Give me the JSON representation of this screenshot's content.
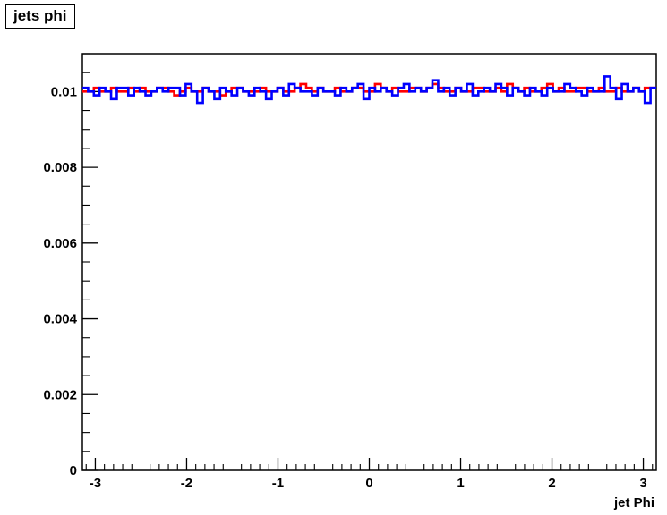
{
  "chart_data": {
    "type": "line",
    "title": "jets phi",
    "xlabel": "jet Phi",
    "ylabel": "",
    "xlim": [
      -3.1416,
      3.1416
    ],
    "ylim": [
      0,
      0.011
    ],
    "x_ticks": [
      -3,
      -2,
      -1,
      0,
      1,
      2,
      3
    ],
    "x_tick_labels": [
      "-3",
      "-2",
      "-1",
      "0",
      "1",
      "2",
      "3"
    ],
    "y_ticks": [
      0,
      0.002,
      0.004,
      0.006,
      0.008,
      0.01
    ],
    "y_tick_labels": [
      "0",
      "0.002",
      "0.004",
      "0.006",
      "0.008",
      "0.01"
    ],
    "grid": false,
    "legend": "none",
    "bins": 100,
    "series": [
      {
        "color": "#ff0000",
        "values": [
          0.01,
          0.01,
          0.0101,
          0.01,
          0.01,
          0.0101,
          0.01,
          0.01,
          0.0101,
          0.01,
          0.0101,
          0.01,
          0.01,
          0.0101,
          0.0101,
          0.01,
          0.0099,
          0.01,
          0.0101,
          0.01,
          0.01,
          0.0101,
          0.01,
          0.01,
          0.0099,
          0.01,
          0.0101,
          0.0101,
          0.01,
          0.01,
          0.01,
          0.0101,
          0.01,
          0.01,
          0.0101,
          0.01,
          0.01,
          0.0101,
          0.0102,
          0.0101,
          0.01,
          0.0101,
          0.01,
          0.01,
          0.0101,
          0.01,
          0.01,
          0.0101,
          0.0101,
          0.01,
          0.01,
          0.0102,
          0.0101,
          0.01,
          0.0101,
          0.01,
          0.01,
          0.0101,
          0.0101,
          0.01,
          0.0101,
          0.0102,
          0.0101,
          0.01,
          0.01,
          0.0101,
          0.01,
          0.01,
          0.0101,
          0.0101,
          0.01,
          0.01,
          0.0101,
          0.01,
          0.0102,
          0.0101,
          0.01,
          0.0101,
          0.01,
          0.01,
          0.0101,
          0.0102,
          0.01,
          0.0101,
          0.01,
          0.01,
          0.0101,
          0.0101,
          0.01,
          0.01,
          0.0101,
          0.01,
          0.01,
          0.0101,
          0.01,
          0.01,
          0.0101,
          0.01,
          0.0101,
          0.0101
        ]
      },
      {
        "color": "#0000ff",
        "values": [
          0.0101,
          0.01,
          0.0099,
          0.0101,
          0.01,
          0.0098,
          0.0101,
          0.0101,
          0.0099,
          0.0101,
          0.01,
          0.0099,
          0.01,
          0.0101,
          0.01,
          0.0101,
          0.0101,
          0.0099,
          0.0102,
          0.01,
          0.0097,
          0.0101,
          0.01,
          0.0098,
          0.0101,
          0.01,
          0.0099,
          0.0101,
          0.01,
          0.0099,
          0.0101,
          0.01,
          0.0098,
          0.01,
          0.0101,
          0.0099,
          0.0102,
          0.0101,
          0.01,
          0.01,
          0.0099,
          0.0101,
          0.01,
          0.01,
          0.0099,
          0.0101,
          0.01,
          0.0101,
          0.0102,
          0.0098,
          0.0101,
          0.01,
          0.0101,
          0.01,
          0.0099,
          0.0101,
          0.0102,
          0.01,
          0.0101,
          0.01,
          0.0101,
          0.0103,
          0.01,
          0.0101,
          0.0099,
          0.0101,
          0.01,
          0.0102,
          0.0099,
          0.01,
          0.0101,
          0.01,
          0.0102,
          0.0101,
          0.0099,
          0.0101,
          0.01,
          0.0099,
          0.0101,
          0.01,
          0.0099,
          0.0101,
          0.01,
          0.01,
          0.0102,
          0.0101,
          0.01,
          0.0099,
          0.0101,
          0.01,
          0.01,
          0.0104,
          0.0101,
          0.0098,
          0.0102,
          0.01,
          0.0101,
          0.01,
          0.0097,
          0.0101
        ]
      }
    ]
  }
}
